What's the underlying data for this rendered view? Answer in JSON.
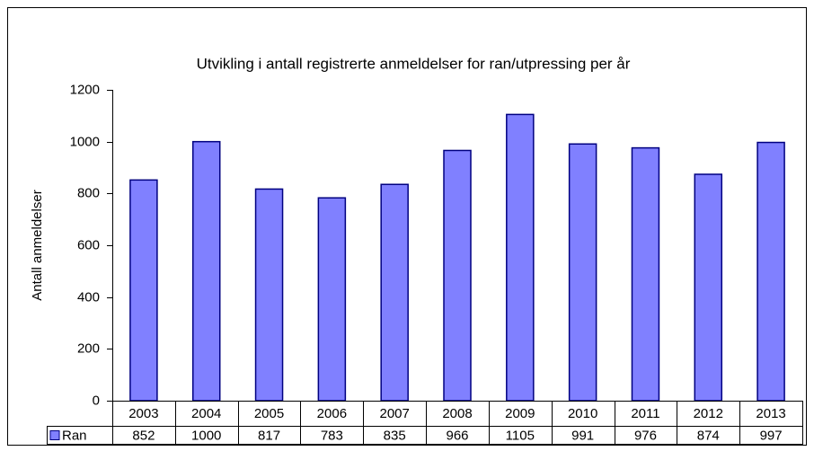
{
  "chart_data": {
    "type": "bar",
    "title": "Utvikling i antall registrerte anmeldelser for ran/utpressing per år",
    "y_label": "Antall anmeldelser",
    "categories": [
      "2003",
      "2004",
      "2005",
      "2006",
      "2007",
      "2008",
      "2009",
      "2010",
      "2011",
      "2012",
      "2013"
    ],
    "series": [
      {
        "name": "Ran",
        "color": "#8080ff",
        "values": [
          852,
          1000,
          817,
          783,
          835,
          966,
          1105,
          991,
          976,
          874,
          997
        ]
      }
    ],
    "ylim": [
      0,
      1200
    ],
    "yticks": [
      0,
      200,
      400,
      600,
      800,
      1000,
      1200
    ],
    "grid": false,
    "data_table": true
  }
}
